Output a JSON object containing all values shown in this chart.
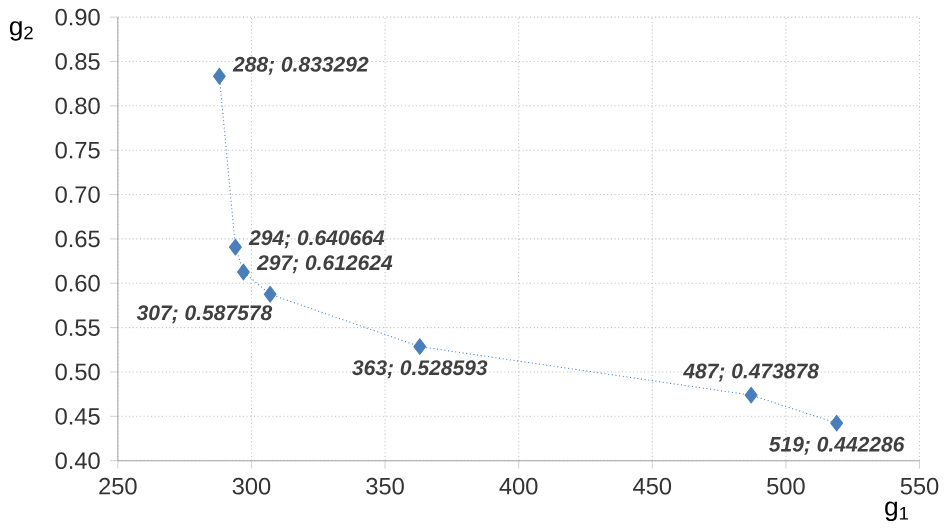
{
  "chart_data": {
    "type": "line",
    "xlabel": "g$_{1}$",
    "ylabel": "g$_{2}$",
    "x": [
      288,
      294,
      297,
      307,
      363,
      487,
      519
    ],
    "series": [
      {
        "color": "#4a7ebb",
        "values": [
          0.833292,
          0.640664,
          0.612624,
          0.587578,
          0.528593,
          0.473878,
          0.442286
        ],
        "value_labels": [
          "288; 0.833292",
          "294; 0.640664",
          "297; 0.612624",
          "307; 0.587578",
          "363; 0.528593",
          "487; 0.473878",
          "519; 0.442286"
        ]
      }
    ],
    "xlim": [
      250,
      550
    ],
    "xticks": [
      250,
      300,
      350,
      400,
      450,
      500,
      550
    ],
    "ylim": [
      0.4,
      0.9
    ],
    "yticks": [
      {
        "value": 0.4,
        "label": "0.40"
      },
      {
        "value": 0.45,
        "label": "0.45"
      },
      {
        "value": 0.5,
        "label": "0.50"
      },
      {
        "value": 0.55,
        "label": "0.55"
      },
      {
        "value": 0.6,
        "label": "0.60"
      },
      {
        "value": 0.65,
        "label": "0.65"
      },
      {
        "value": 0.7,
        "label": "0.70"
      },
      {
        "value": 0.75,
        "label": "0.75"
      },
      {
        "value": 0.8,
        "label": "0.80"
      },
      {
        "value": 0.85,
        "label": "0.85"
      },
      {
        "value": 0.9,
        "label": "0.90"
      }
    ],
    "grid": true,
    "marker": "diamond",
    "line_style": "dotted"
  }
}
